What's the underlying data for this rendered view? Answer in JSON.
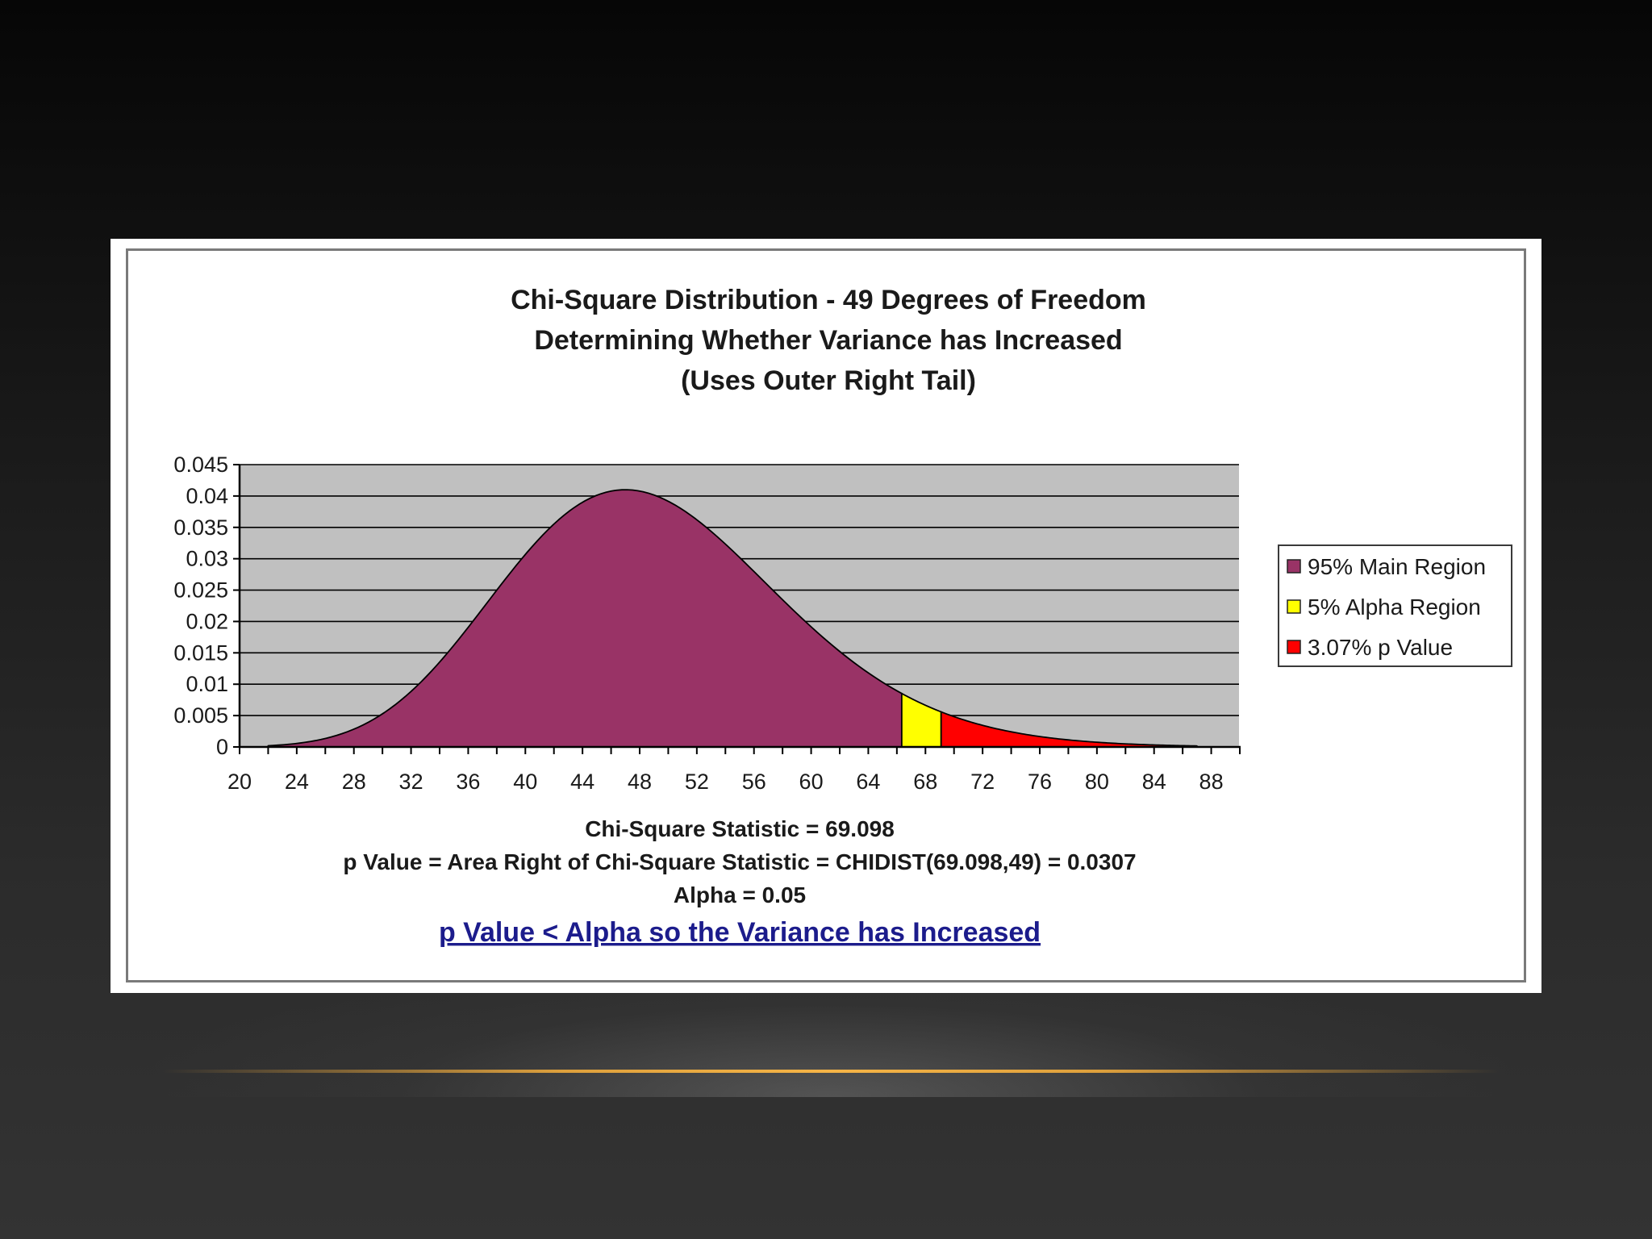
{
  "chart_data": {
    "type": "area",
    "title": [
      "Chi-Square Distribution - 49 Degrees of Freedom",
      "Determining Whether Variance has Increased",
      "(Uses Outer Right Tail)"
    ],
    "distribution": "chi-square",
    "degrees_of_freedom": 49,
    "xlim": [
      20,
      90
    ],
    "ylim": [
      0,
      0.045
    ],
    "x_ticks": [
      "20",
      "24",
      "28",
      "32",
      "36",
      "40",
      "44",
      "48",
      "52",
      "56",
      "60",
      "64",
      "68",
      "72",
      "76",
      "80",
      "84",
      "88"
    ],
    "y_ticks": [
      "0",
      "0.005",
      "0.01",
      "0.015",
      "0.02",
      "0.025",
      "0.03",
      "0.035",
      "0.04",
      "0.045"
    ],
    "grid": "horizontal",
    "plot_background": "#c0c0c0",
    "series": [
      {
        "name": "95% Main Region",
        "x_range": [
          22,
          66.34
        ],
        "color": "#993366"
      },
      {
        "name": "5% Alpha Region",
        "x_range": [
          66.34,
          69.098
        ],
        "color": "#ffff00"
      },
      {
        "name": "3.07% p Value",
        "x_range": [
          69.098,
          87
        ],
        "color": "#ff0000"
      }
    ],
    "legend_position": "right",
    "annotations": [
      "Chi-Square Statistic = 69.098",
      "p Value = Area Right of Chi-Square Statistic = CHIDIST(69.098,49) = 0.0307",
      "Alpha = 0.05"
    ],
    "conclusion": "p Value < Alpha so the Variance has Increased"
  }
}
